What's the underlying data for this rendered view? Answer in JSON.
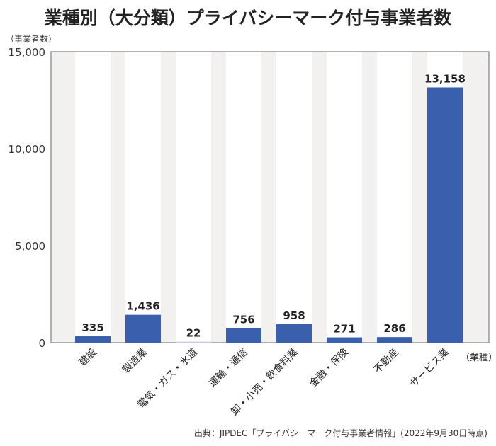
{
  "chart_data": {
    "type": "bar",
    "title": "業種別（大分類）プライバシーマーク付与事業者数",
    "ylabel": "（事業者数）",
    "xlabel": "（業種）",
    "categories": [
      "建設",
      "製造業",
      "電気・ガス・水道",
      "運輸・通信",
      "卸・小売・飲食料業",
      "金融・保険",
      "不動産",
      "サービス業"
    ],
    "values": [
      335,
      1436,
      22,
      756,
      958,
      271,
      286,
      13158
    ],
    "data_labels": [
      "335",
      "1,436",
      "22",
      "756",
      "958",
      "271",
      "286",
      "13,158"
    ],
    "ylim": [
      0,
      15000
    ],
    "yticks": [
      0,
      5000,
      10000,
      15000
    ],
    "ytick_labels": [
      "0",
      "5,000",
      "10,000",
      "15,000"
    ],
    "grid": false,
    "colors": {
      "bar": "#3a5fad",
      "bar_small": "#c8d3ea",
      "stripe": "#f2f1f0",
      "axis": "#999999"
    },
    "source": "出典：JIPDEC「プライバシーマーク付与事業者情報」(2022年9月30日時点)"
  }
}
